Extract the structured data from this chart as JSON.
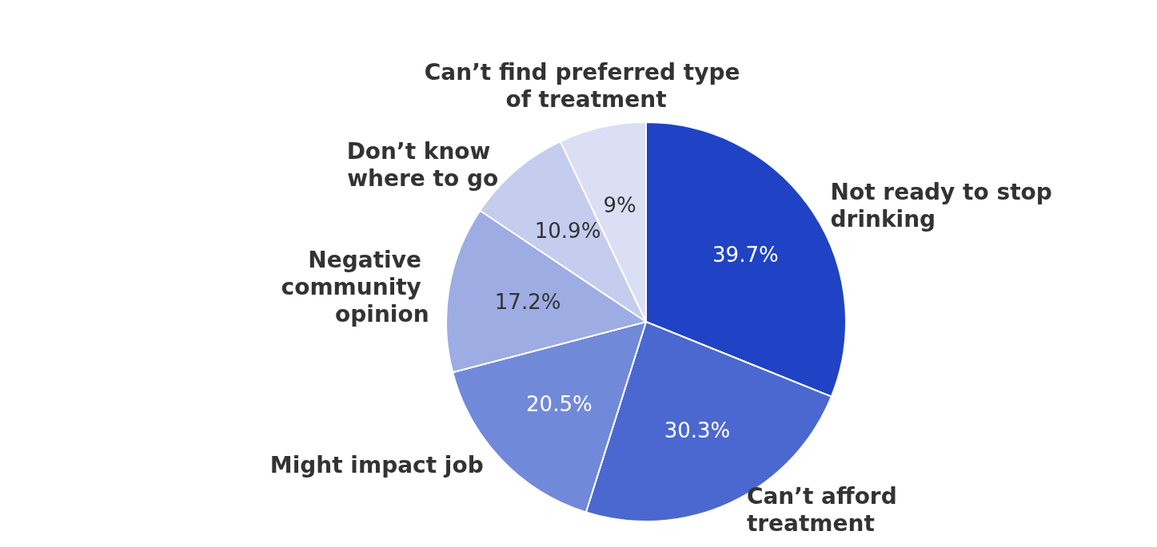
{
  "chart_data": {
    "type": "pie",
    "categories": [
      "Not ready to stop drinking",
      "Can’t afford treatment",
      "Might impact job",
      "Negative community opinion",
      "Don’t know where to go",
      "Can’t find preferred type of treatment"
    ],
    "values": [
      39.7,
      30.3,
      20.5,
      17.2,
      10.9,
      9
    ],
    "value_labels": [
      "39.7%",
      "30.3%",
      "20.5%",
      "17.2%",
      "10.9%",
      "9%"
    ],
    "colors": [
      "#1f43c4",
      "#4a68cf",
      "#7189d9",
      "#9dace3",
      "#c4cdee",
      "#dadff5"
    ]
  }
}
